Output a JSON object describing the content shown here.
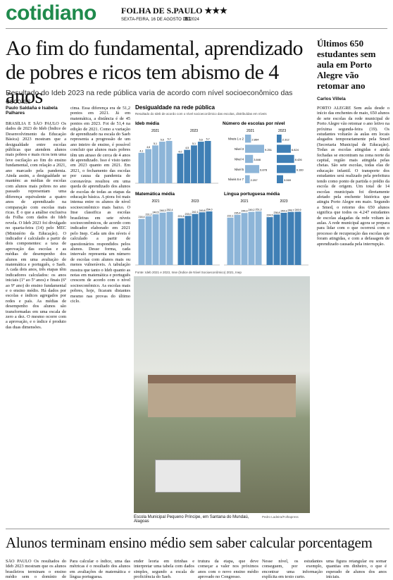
{
  "header": {
    "section": "cotidiano",
    "masthead": "FOLHA DE S.PAULO ★★★",
    "date": "SEXTA-FEIRA, 16 DE AGOSTO DE 2024",
    "page": "B1"
  },
  "main": {
    "headline": "Ao fim do fundamental, aprendizado de pobres e ricos tem abismo de 4 anos",
    "subhead": "Resultado do Ideb 2023 na rede pública varia de acordo com nível socioeconômico das escolas",
    "byline": "Paulo Saldaña e Isabela Palhares",
    "col1": "BRASÍLIA E SÃO PAULO Os dados de 2023 do Ideb (Índice de Desenvolvimento da Educação Básica) 2023 mostram que a desigualdade entre escolas públicas que atendem alunos mais pobres e mais ricos tem uma leve oscilação ao fim do ensino fundamental, com relação a 2021, ano marcado pela pandemia. Ainda assim, a desigualdade se mantém: as médias de escolas com alunos mais pobres no ano passado representam uma diferença equivalente a quatro anos de aprendizado na comparação com escolas mais ricas. É o que a análise exclusiva da Folha com dados do Ideb revela. O Ideb 2023 foi divulgado no quarta-feira (14) pelo MEC (Ministério da Educação). O indicador é calculado a partir de dois componentes: a taxa de aprovação das escolas e as médias de desempenho dos alunos em uma avaliação de matemática e português, o Saeb. A cada dois anos, três etapas têm indicadores calculados: os anos iniciais (1º ao 5º anos) e finais (6º ao 9º ano) do ensino fundamental e o ensino médio. Há dados por escolas e índices agregados por redes e país. As médias de desempenho dos alunos são transformadas em uma escala de zero a dez. O mesmo ocorre com a aprovação, e o índice é produto das duas dimensões.",
    "col2": "cima. Essa diferença era de 51,2 pontos em 2021. Já em matemática, a distância é de 45 pontos em 2023. Foi de 51,4 na edição de 2021. Como a variação de aprendizado na escala do Saeb representa a progressão de um ano inteiro de ensino, é possível concluir que alunos mais pobres têm um atraso de cerca de 4 anos de aprendizado. Isso é visto tanto em 2023 quanto em 2021. Em 2021, o fechamento das escolas por causa da pandemia de coronavírus resultou em uma queda de aprendizado dos alunos de escolas de todas as etapas da educação básica. A piora foi mais intensa entre os alunos de nível socioeconômico mais baixo. O Inse classifica as escolas brasileiras em sete níveis socioeconômicos, de acordo com indicador elaborado em 2021 pelo Inep. Cada um dos níveis é calculado a partir de questionários respondidos pelos alunos. Desse forma, cada intervalo representa um número de escolas com alunos mais ou menos vulneráveis. A tabulação mostra que tanto o Ideb quanto as notas em matemática e português crescem de acordo com o nível socioeconômico. As escolas mais pobres, hoje, ficaram distantes mesmo nas provas do último ciclo.",
    "photo_caption": "Escola Municipal Pequeno Príncipe, em Santana do Mundaú, Alagoas",
    "photo_credit": "Pedro Ladeira/Folhapress"
  },
  "side": {
    "headline": "Últimos 650 estudantes sem aula em Porto Alegre vão retomar ano",
    "byline": "Carlos Villela",
    "text": "PORTO ALEGRE Sem aula desde o início das enchentes de maio, 650 alunos de sete escolas da rede municipal de Porto Alegre vão retomar o ano letivo na próxima segunda-feira (19). Os estudantes voltarão às aulas em locais alugados temporariamente pela Smed (Secretaria Municipal de Educação). Todas as escolas atingidas e ainda fechadas se encontram na zona norte da capital, região mais atingida pelas cheias. São sete escolas, todas elas de educação infantil. O transporte dos estudantes será realizado pela prefeitura tendo como ponto de partida o prédio da escola de origem. Um total de 14 escolas municipais foi diretamente afetado pela enchente histórica que atingiu Porto Alegre em maio. Segundo a Smed, o retorno dos 650 alunos significa que todos os 4.247 estudantes de escolas alagadas da rede voltam às aulas. A rede municipal agora se prepara para lidar com o que ocorrerá com o processo de recuperação das escolas que foram atingidas, e com a defasagem de aprendizado causada pela interrupção."
  },
  "bottom": {
    "headline": "Alunos terminam ensino médio sem saber calcular porcentagem",
    "cols": [
      "SÃO PAULO Os resultados do Ideb 2023 mostram que os alunos brasileiros terminam o ensino médio sem o domínio de habilidades básicas.",
      "Para calcular o índice, uma das métricas é o resultado dos alunos em avaliações de matemática e língua portuguesa.",
      "ender leoria em tirinhas e interpretar uma tabela com dados simples, segundo a escala de proficiência do Saeb.",
      "trutura da etapa, que deve começar a valer nos próximos anos com o novo ensino médio aprovado no Congresso.",
      "Nesse nível, os estudantes conseguem, por exemplo, encontrar uma informação explícita em texto curto.",
      "uma figura retangular ou somar quantias em dinheiro, o que é esperado de alunos dos anos iniciais."
    ]
  },
  "infographic": {
    "title": "Desigualdade na rede pública",
    "subtitle": "Resultado do Ideb de acordo com o nível socioeconômico das escolas, distribuídas em níveis",
    "source": "Fonte: Ideb 2021 e 2023, Inse (Índice de Nível Socioeconômico) 2021, Inep"
  },
  "chart_data": [
    {
      "type": "bar",
      "title": "Ideb média",
      "categories": [
        "Níveis 1 e 2",
        "Nível 3",
        "Nível 4",
        "Nível 5",
        "Níveis 6 e 7"
      ],
      "series": [
        {
          "name": "2021",
          "color": "#8db5d8",
          "values": [
            4.1,
            4.6,
            5.1,
            5.6,
            5.7
          ],
          "value_labels": [
            "4,1",
            "4,6",
            "5,1",
            "5,6",
            "5,7"
          ]
        },
        {
          "name": "2023",
          "color": "#3f7fb5",
          "values": [
            4.0,
            4.5,
            5.1,
            5.6,
            5.7
          ],
          "value_labels": [
            "4,0",
            "4,5",
            "5,1",
            "5,6",
            "5,7"
          ]
        }
      ]
    },
    {
      "type": "hbar",
      "title": "Número de escolas por nível",
      "categories": [
        "Níveis 1 e 2",
        "Nível 3",
        "Nível 4",
        "Nível 5",
        "Níveis 6 e 7"
      ],
      "series": [
        {
          "name": "2021",
          "color": "#8db5d8",
          "values": [
            2864,
            9251,
            3846,
            6878,
            2257
          ],
          "value_labels": [
            "2.864",
            "9.251",
            "3.846",
            "6.878",
            "2.257"
          ]
        },
        {
          "name": "2023",
          "color": "#3f7fb5",
          "values": [
            2312,
            6824,
            8426,
            9160,
            3069
          ],
          "value_labels": [
            "2.312",
            "6.824",
            "8.426",
            "9.160",
            "3.069"
          ]
        }
      ]
    },
    {
      "type": "bar",
      "title": "Matemática média",
      "categories": [
        "Níveis 1 e 2",
        "Nível 3",
        "Nível 4",
        "Nível 5",
        "Níveis 6 e 7"
      ],
      "series": [
        {
          "name": "2021",
          "color": "#8db5d8",
          "values": [
            218.4,
            231.2,
            240.5,
            248.3,
            252.4
          ],
          "value_labels": [
            "218,4",
            "231,2",
            "240,5",
            "248,3",
            "252,4"
          ]
        },
        {
          "name": "2023",
          "color": "#3f7fb5",
          "values": [
            221.6,
            233.0,
            242.1,
            249.8,
            254.0
          ],
          "value_labels": [
            "221,6",
            "233,0",
            "242,1",
            "249,8",
            "254,0"
          ]
        }
      ]
    },
    {
      "type": "bar",
      "title": "Língua portuguesa média",
      "categories": [
        "Níveis 1 e 2",
        "Nível 3",
        "Nível 4",
        "Nível 5",
        "Níveis 6 e 7"
      ],
      "series": [
        {
          "name": "2021",
          "color": "#8db5d8",
          "values": [
            222.1,
            235.4,
            244.0,
            249.2,
            251.3
          ],
          "value_labels": [
            "222,1",
            "235,4",
            "244,0",
            "249,2",
            "251,3"
          ]
        },
        {
          "name": "2023",
          "color": "#3f7fb5",
          "values": [
            224.5,
            236.8,
            244.9,
            248.7,
            249.9
          ],
          "value_labels": [
            "224,5",
            "236,8",
            "244,9",
            "248,7",
            "249,9"
          ]
        }
      ]
    }
  ]
}
